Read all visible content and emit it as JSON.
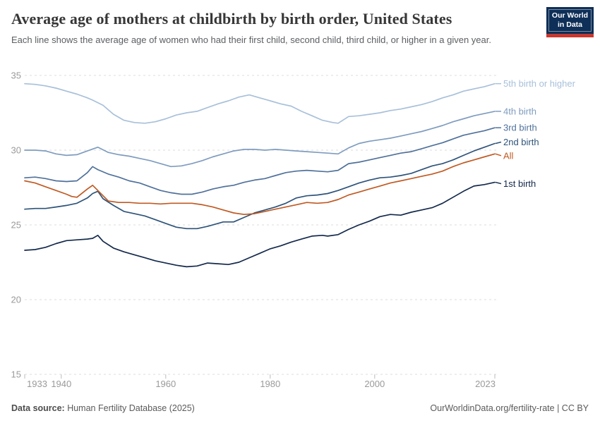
{
  "header": {
    "title": "Average age of mothers at childbirth by birth order, United States",
    "subtitle": "Each line shows the average age of women who had their first child, second child, third child, or higher in a given year."
  },
  "logo": {
    "line1": "Our World",
    "line2": "in Data",
    "bg_color": "#0e2f57",
    "stripe_color": "#c8382f"
  },
  "chart_data": {
    "type": "line",
    "title": "Average age of mothers at childbirth by birth order, United States",
    "xlabel": "",
    "ylabel": "",
    "x_ticks": [
      1933,
      1940,
      1960,
      1980,
      2000,
      2023
    ],
    "y_ticks": [
      15,
      20,
      25,
      30,
      35
    ],
    "x_range": [
      1933,
      2023
    ],
    "y_range": [
      15,
      35
    ],
    "grid": "horizontal-dashed",
    "legend_position": "right-of-lines",
    "gridline_color": "#dcdcdc",
    "tick_label_color": "#9a9a9a",
    "series": [
      {
        "name": "5th birth or higher",
        "color": "#a8c0da",
        "points": [
          [
            1933,
            34.45
          ],
          [
            1935,
            34.4
          ],
          [
            1937,
            34.3
          ],
          [
            1939,
            34.15
          ],
          [
            1941,
            33.95
          ],
          [
            1943,
            33.75
          ],
          [
            1945,
            33.5
          ],
          [
            1946,
            33.35
          ],
          [
            1948,
            33.0
          ],
          [
            1950,
            32.4
          ],
          [
            1952,
            32.0
          ],
          [
            1954,
            31.85
          ],
          [
            1956,
            31.8
          ],
          [
            1958,
            31.9
          ],
          [
            1960,
            32.1
          ],
          [
            1962,
            32.35
          ],
          [
            1964,
            32.5
          ],
          [
            1966,
            32.6
          ],
          [
            1968,
            32.85
          ],
          [
            1970,
            33.1
          ],
          [
            1972,
            33.3
          ],
          [
            1974,
            33.55
          ],
          [
            1976,
            33.7
          ],
          [
            1978,
            33.5
          ],
          [
            1980,
            33.3
          ],
          [
            1982,
            33.1
          ],
          [
            1984,
            32.95
          ],
          [
            1986,
            32.6
          ],
          [
            1988,
            32.3
          ],
          [
            1990,
            32.0
          ],
          [
            1992,
            31.85
          ],
          [
            1993,
            31.8
          ],
          [
            1995,
            32.25
          ],
          [
            1997,
            32.3
          ],
          [
            1999,
            32.4
          ],
          [
            2001,
            32.5
          ],
          [
            2003,
            32.65
          ],
          [
            2005,
            32.75
          ],
          [
            2007,
            32.9
          ],
          [
            2009,
            33.05
          ],
          [
            2011,
            33.25
          ],
          [
            2013,
            33.5
          ],
          [
            2015,
            33.7
          ],
          [
            2017,
            33.95
          ],
          [
            2019,
            34.1
          ],
          [
            2021,
            34.25
          ],
          [
            2023,
            34.45
          ]
        ]
      },
      {
        "name": "4th birth",
        "color": "#7f9cbf",
        "points": [
          [
            1933,
            30.0
          ],
          [
            1935,
            30.0
          ],
          [
            1937,
            29.95
          ],
          [
            1939,
            29.75
          ],
          [
            1941,
            29.65
          ],
          [
            1943,
            29.7
          ],
          [
            1945,
            29.95
          ],
          [
            1947,
            30.2
          ],
          [
            1949,
            29.85
          ],
          [
            1951,
            29.7
          ],
          [
            1953,
            29.6
          ],
          [
            1955,
            29.45
          ],
          [
            1957,
            29.3
          ],
          [
            1959,
            29.1
          ],
          [
            1961,
            28.9
          ],
          [
            1963,
            28.95
          ],
          [
            1965,
            29.1
          ],
          [
            1967,
            29.3
          ],
          [
            1969,
            29.55
          ],
          [
            1971,
            29.75
          ],
          [
            1973,
            29.95
          ],
          [
            1975,
            30.05
          ],
          [
            1977,
            30.05
          ],
          [
            1979,
            30.0
          ],
          [
            1981,
            30.05
          ],
          [
            1983,
            30.0
          ],
          [
            1985,
            29.95
          ],
          [
            1987,
            29.9
          ],
          [
            1989,
            29.85
          ],
          [
            1991,
            29.8
          ],
          [
            1993,
            29.75
          ],
          [
            1995,
            30.15
          ],
          [
            1997,
            30.45
          ],
          [
            1999,
            30.6
          ],
          [
            2001,
            30.7
          ],
          [
            2003,
            30.8
          ],
          [
            2005,
            30.95
          ],
          [
            2007,
            31.1
          ],
          [
            2009,
            31.25
          ],
          [
            2011,
            31.45
          ],
          [
            2013,
            31.65
          ],
          [
            2015,
            31.9
          ],
          [
            2017,
            32.1
          ],
          [
            2019,
            32.3
          ],
          [
            2021,
            32.45
          ],
          [
            2023,
            32.6
          ]
        ]
      },
      {
        "name": "3rd birth",
        "color": "#50719b",
        "points": [
          [
            1933,
            28.15
          ],
          [
            1935,
            28.2
          ],
          [
            1937,
            28.1
          ],
          [
            1939,
            27.95
          ],
          [
            1941,
            27.9
          ],
          [
            1943,
            27.95
          ],
          [
            1945,
            28.5
          ],
          [
            1946,
            28.9
          ],
          [
            1947,
            28.7
          ],
          [
            1949,
            28.4
          ],
          [
            1951,
            28.2
          ],
          [
            1953,
            27.95
          ],
          [
            1955,
            27.8
          ],
          [
            1957,
            27.55
          ],
          [
            1959,
            27.3
          ],
          [
            1961,
            27.15
          ],
          [
            1963,
            27.05
          ],
          [
            1965,
            27.05
          ],
          [
            1967,
            27.2
          ],
          [
            1969,
            27.4
          ],
          [
            1971,
            27.55
          ],
          [
            1973,
            27.65
          ],
          [
            1975,
            27.85
          ],
          [
            1977,
            28.0
          ],
          [
            1979,
            28.1
          ],
          [
            1981,
            28.3
          ],
          [
            1983,
            28.5
          ],
          [
            1985,
            28.6
          ],
          [
            1987,
            28.65
          ],
          [
            1989,
            28.6
          ],
          [
            1991,
            28.55
          ],
          [
            1993,
            28.65
          ],
          [
            1995,
            29.1
          ],
          [
            1997,
            29.2
          ],
          [
            1999,
            29.35
          ],
          [
            2001,
            29.5
          ],
          [
            2003,
            29.65
          ],
          [
            2005,
            29.8
          ],
          [
            2007,
            29.9
          ],
          [
            2009,
            30.1
          ],
          [
            2011,
            30.3
          ],
          [
            2013,
            30.5
          ],
          [
            2015,
            30.75
          ],
          [
            2017,
            31.0
          ],
          [
            2019,
            31.15
          ],
          [
            2021,
            31.3
          ],
          [
            2023,
            31.5
          ]
        ]
      },
      {
        "name": "2nd birth",
        "color": "#2e5379",
        "points": [
          [
            1933,
            26.05
          ],
          [
            1935,
            26.1
          ],
          [
            1937,
            26.1
          ],
          [
            1939,
            26.2
          ],
          [
            1941,
            26.3
          ],
          [
            1943,
            26.45
          ],
          [
            1945,
            26.8
          ],
          [
            1946,
            27.1
          ],
          [
            1947,
            27.25
          ],
          [
            1948,
            26.75
          ],
          [
            1950,
            26.3
          ],
          [
            1952,
            25.9
          ],
          [
            1954,
            25.75
          ],
          [
            1956,
            25.6
          ],
          [
            1958,
            25.35
          ],
          [
            1960,
            25.1
          ],
          [
            1962,
            24.85
          ],
          [
            1964,
            24.75
          ],
          [
            1966,
            24.75
          ],
          [
            1968,
            24.9
          ],
          [
            1970,
            25.1
          ],
          [
            1971,
            25.2
          ],
          [
            1973,
            25.2
          ],
          [
            1975,
            25.5
          ],
          [
            1977,
            25.8
          ],
          [
            1979,
            26.0
          ],
          [
            1981,
            26.2
          ],
          [
            1983,
            26.45
          ],
          [
            1985,
            26.8
          ],
          [
            1987,
            26.95
          ],
          [
            1989,
            27.0
          ],
          [
            1991,
            27.1
          ],
          [
            1993,
            27.3
          ],
          [
            1995,
            27.55
          ],
          [
            1997,
            27.8
          ],
          [
            1999,
            28.0
          ],
          [
            2001,
            28.15
          ],
          [
            2003,
            28.2
          ],
          [
            2005,
            28.3
          ],
          [
            2007,
            28.45
          ],
          [
            2009,
            28.7
          ],
          [
            2011,
            28.95
          ],
          [
            2013,
            29.1
          ],
          [
            2015,
            29.35
          ],
          [
            2017,
            29.65
          ],
          [
            2019,
            29.95
          ],
          [
            2021,
            30.2
          ],
          [
            2023,
            30.45
          ]
        ]
      },
      {
        "name": "All",
        "color": "#c05a23",
        "points": [
          [
            1933,
            27.95
          ],
          [
            1935,
            27.8
          ],
          [
            1937,
            27.55
          ],
          [
            1939,
            27.3
          ],
          [
            1941,
            27.05
          ],
          [
            1942,
            26.9
          ],
          [
            1943,
            26.85
          ],
          [
            1945,
            27.4
          ],
          [
            1946,
            27.65
          ],
          [
            1947,
            27.3
          ],
          [
            1949,
            26.6
          ],
          [
            1951,
            26.5
          ],
          [
            1953,
            26.5
          ],
          [
            1955,
            26.45
          ],
          [
            1957,
            26.45
          ],
          [
            1959,
            26.4
          ],
          [
            1961,
            26.45
          ],
          [
            1963,
            26.45
          ],
          [
            1965,
            26.45
          ],
          [
            1967,
            26.35
          ],
          [
            1969,
            26.2
          ],
          [
            1971,
            26.0
          ],
          [
            1973,
            25.8
          ],
          [
            1975,
            25.7
          ],
          [
            1977,
            25.75
          ],
          [
            1979,
            25.9
          ],
          [
            1981,
            26.05
          ],
          [
            1983,
            26.2
          ],
          [
            1985,
            26.35
          ],
          [
            1987,
            26.5
          ],
          [
            1989,
            26.45
          ],
          [
            1991,
            26.5
          ],
          [
            1993,
            26.7
          ],
          [
            1995,
            27.0
          ],
          [
            1997,
            27.2
          ],
          [
            1999,
            27.4
          ],
          [
            2001,
            27.6
          ],
          [
            2003,
            27.8
          ],
          [
            2005,
            27.95
          ],
          [
            2007,
            28.1
          ],
          [
            2009,
            28.25
          ],
          [
            2011,
            28.4
          ],
          [
            2013,
            28.6
          ],
          [
            2015,
            28.9
          ],
          [
            2017,
            29.15
          ],
          [
            2019,
            29.35
          ],
          [
            2021,
            29.55
          ],
          [
            2023,
            29.75
          ]
        ]
      },
      {
        "name": "1st birth",
        "color": "#13294b",
        "points": [
          [
            1933,
            23.3
          ],
          [
            1935,
            23.35
          ],
          [
            1937,
            23.5
          ],
          [
            1939,
            23.75
          ],
          [
            1941,
            23.95
          ],
          [
            1943,
            24.0
          ],
          [
            1945,
            24.05
          ],
          [
            1946,
            24.1
          ],
          [
            1947,
            24.3
          ],
          [
            1948,
            23.9
          ],
          [
            1950,
            23.45
          ],
          [
            1952,
            23.2
          ],
          [
            1954,
            23.0
          ],
          [
            1956,
            22.8
          ],
          [
            1958,
            22.6
          ],
          [
            1960,
            22.45
          ],
          [
            1962,
            22.3
          ],
          [
            1964,
            22.2
          ],
          [
            1966,
            22.25
          ],
          [
            1968,
            22.45
          ],
          [
            1970,
            22.4
          ],
          [
            1972,
            22.35
          ],
          [
            1974,
            22.5
          ],
          [
            1976,
            22.8
          ],
          [
            1978,
            23.1
          ],
          [
            1980,
            23.4
          ],
          [
            1982,
            23.6
          ],
          [
            1984,
            23.85
          ],
          [
            1986,
            24.05
          ],
          [
            1988,
            24.25
          ],
          [
            1990,
            24.3
          ],
          [
            1991,
            24.25
          ],
          [
            1993,
            24.35
          ],
          [
            1995,
            24.7
          ],
          [
            1997,
            25.0
          ],
          [
            1999,
            25.25
          ],
          [
            2001,
            25.55
          ],
          [
            2003,
            25.7
          ],
          [
            2005,
            25.65
          ],
          [
            2007,
            25.85
          ],
          [
            2009,
            26.0
          ],
          [
            2011,
            26.15
          ],
          [
            2013,
            26.45
          ],
          [
            2015,
            26.85
          ],
          [
            2017,
            27.25
          ],
          [
            2019,
            27.6
          ],
          [
            2021,
            27.7
          ],
          [
            2023,
            27.85
          ]
        ]
      }
    ]
  },
  "footer": {
    "source_prefix": "Data source:",
    "source_text": " Human Fertility Database (2025)",
    "credit": "OurWorldinData.org/fertility-rate | CC BY"
  }
}
